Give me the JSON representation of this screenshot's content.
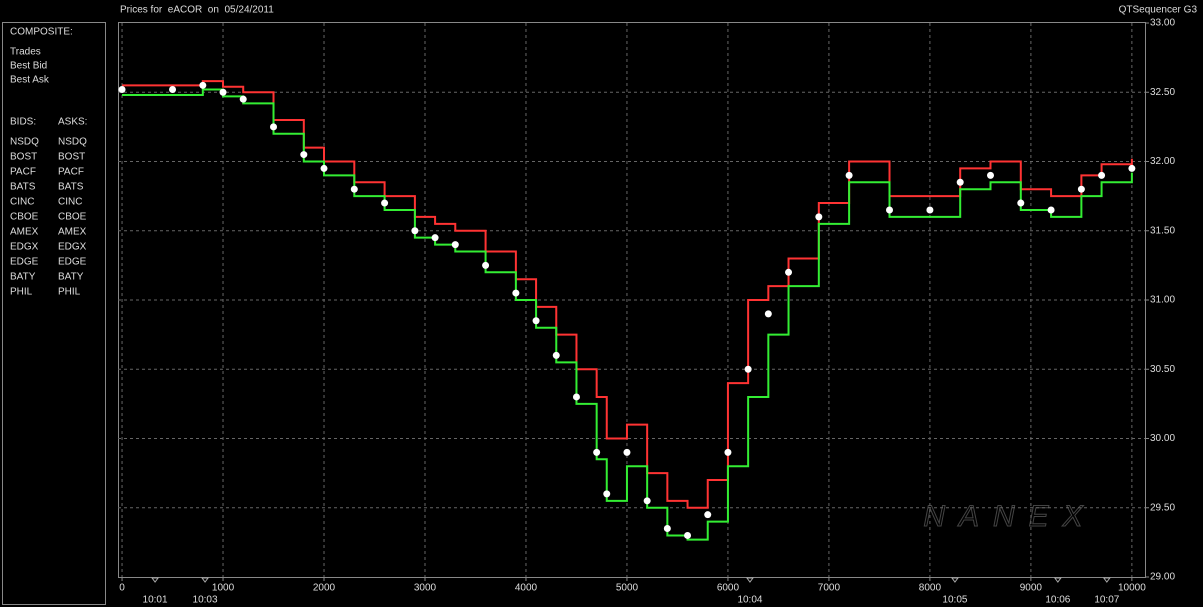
{
  "chart_data": {
    "type": "line",
    "title": "Prices for  eACOR  on  05/24/2011",
    "subtitle": "QTSequencer G3",
    "watermark": "NANEX",
    "composite_label": "COMPOSITE:",
    "bids_label": "BIDS:",
    "asks_label": "ASKS:",
    "exchanges": [
      {
        "name": "NSDQ",
        "bid_color": "#4f8fff",
        "ask_color": "#ff9933"
      },
      {
        "name": "BOST",
        "bid_color": "#66cc66",
        "ask_color": "#ff6633"
      },
      {
        "name": "PACF",
        "bid_color": "#33ccff",
        "ask_color": "#ffff33"
      },
      {
        "name": "BATS",
        "bid_color": "#99ccff",
        "ask_color": "#ffcc66"
      },
      {
        "name": "CINC",
        "bid_color": "#3399aa",
        "ask_color": "#aa8844"
      },
      {
        "name": "CBOE",
        "bid_color": "#3355cc",
        "ask_color": "#cc8833"
      },
      {
        "name": "AMEX",
        "bid_color": "#33cc33",
        "ask_color": "#ffaa00"
      },
      {
        "name": "EDGX",
        "bid_color": "#44aa44",
        "ask_color": "#dd5533"
      },
      {
        "name": "EDGE",
        "bid_color": "#66bb66",
        "ask_color": "#cc6644"
      },
      {
        "name": "BATY",
        "bid_color": "#5577dd",
        "ask_color": "#ee5544"
      },
      {
        "name": "PHIL",
        "bid_color": "#77aa44",
        "ask_color": "#cc3344"
      }
    ],
    "x": [
      0,
      500,
      800,
      1000,
      1200,
      1500,
      1800,
      2000,
      2300,
      2600,
      2900,
      3100,
      3300,
      3600,
      3900,
      4100,
      4300,
      4500,
      4700,
      4800,
      5000,
      5200,
      5400,
      5600,
      5800,
      6000,
      6200,
      6400,
      6600,
      6900,
      7200,
      7600,
      8000,
      8300,
      8600,
      8900,
      9200,
      9500,
      9700,
      10000
    ],
    "series": [
      {
        "name": "Best Ask",
        "color": "#ff3333",
        "values": [
          32.55,
          32.55,
          32.58,
          32.54,
          32.5,
          32.3,
          32.1,
          32.0,
          31.85,
          31.75,
          31.6,
          31.55,
          31.5,
          31.35,
          31.15,
          30.95,
          30.75,
          30.5,
          30.3,
          30.0,
          30.1,
          29.75,
          29.55,
          29.5,
          29.7,
          30.4,
          31.0,
          31.1,
          31.3,
          31.7,
          32.0,
          31.75,
          31.75,
          31.95,
          32.0,
          31.8,
          31.75,
          31.9,
          31.98,
          32.02
        ]
      },
      {
        "name": "Best Bid",
        "color": "#33ee33",
        "values": [
          32.48,
          32.48,
          32.52,
          32.47,
          32.42,
          32.2,
          32.0,
          31.9,
          31.75,
          31.65,
          31.45,
          31.4,
          31.35,
          31.2,
          31.0,
          30.8,
          30.55,
          30.25,
          29.85,
          29.55,
          29.8,
          29.5,
          29.3,
          29.27,
          29.4,
          29.8,
          30.3,
          30.75,
          31.1,
          31.55,
          31.85,
          31.6,
          31.6,
          31.8,
          31.85,
          31.65,
          31.6,
          31.75,
          31.85,
          31.92
        ]
      },
      {
        "name": "Trades",
        "color": "#ffffff",
        "values": [
          32.52,
          32.52,
          32.55,
          32.5,
          32.45,
          32.25,
          32.05,
          31.95,
          31.8,
          31.7,
          31.5,
          31.45,
          31.4,
          31.25,
          31.05,
          30.85,
          30.6,
          30.3,
          29.9,
          29.6,
          29.9,
          29.55,
          29.35,
          29.3,
          29.45,
          29.9,
          30.5,
          30.9,
          31.2,
          31.6,
          31.9,
          31.65,
          31.65,
          31.85,
          31.9,
          31.7,
          31.65,
          31.8,
          31.9,
          31.95
        ]
      }
    ],
    "xlim": [
      -40,
      10130
    ],
    "ylim": [
      29.0,
      33.0
    ],
    "xticks": [
      0,
      1000,
      2000,
      3000,
      4000,
      5000,
      6000,
      7000,
      8000,
      9000,
      10000
    ],
    "yticks": [
      {
        "value": 29.0,
        "label": "29.00"
      },
      {
        "value": 29.5,
        "label": "29.50"
      },
      {
        "value": 30.0,
        "label": "30.00"
      },
      {
        "value": 30.5,
        "label": "30.50"
      },
      {
        "value": 31.0,
        "label": "31.00"
      },
      {
        "value": 31.5,
        "label": "31.50"
      },
      {
        "value": 32.0,
        "label": "32.00"
      },
      {
        "value": 32.5,
        "label": "32.50"
      },
      {
        "value": 33.0,
        "label": "33.00"
      }
    ],
    "time_ticks": [
      {
        "value": 327,
        "label": "10:01"
      },
      {
        "value": 822,
        "label": "10:03"
      },
      {
        "value": 6218,
        "label": "10:04"
      },
      {
        "value": 8248,
        "label": "10:05"
      },
      {
        "value": 9267,
        "label": "10:06"
      },
      {
        "value": 9752,
        "label": "10:07"
      }
    ],
    "grid": true
  }
}
